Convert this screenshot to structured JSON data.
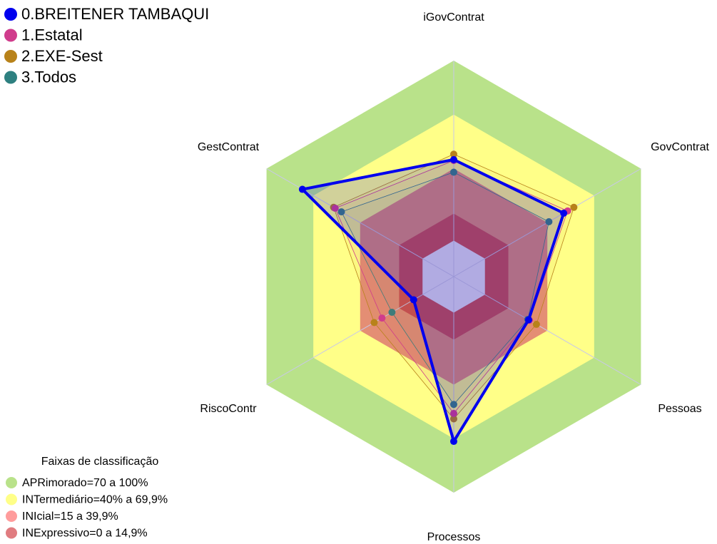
{
  "chart_data": {
    "type": "radar",
    "categories": [
      "iGovContrat",
      "GovContrat",
      "Pessoas",
      "Processos",
      "RiscoContr",
      "GestContrat"
    ],
    "rlim": [
      -20,
      100
    ],
    "series": [
      {
        "name": "0.BREITENER TAMBAQUI",
        "color": "#0000ee",
        "values": [
          45,
          50.5,
          28,
          71.5,
          5.7,
          77
        ]
      },
      {
        "name": "1.Estatal",
        "color": "#d03c8c",
        "values": [
          44.5,
          53,
          28.5,
          56,
          26,
          56
        ]
      },
      {
        "name": "2.EXE-Sest",
        "color": "#b8821a",
        "values": [
          48,
          57,
          33,
          59,
          31,
          57
        ]
      },
      {
        "name": "3.Todos",
        "color": "#2e8080",
        "values": [
          38,
          41,
          27.5,
          51,
          19.6,
          52
        ]
      }
    ],
    "bands_title": "Faixas de classificação",
    "bands": [
      {
        "name": "APRimorado=70 a 100%",
        "range": [
          70,
          100
        ],
        "color": "#b9e28a",
        "legend_color": "#b9e28a"
      },
      {
        "name": "INTermediário=40% a 69,9%",
        "range": [
          40,
          70
        ],
        "color": "#ffff88",
        "legend_color": "#ffff88"
      },
      {
        "name": "INIcial=15 a 39,9%",
        "range": [
          15,
          40
        ],
        "color": "#e48e74",
        "legend_color": "#ff9c9c"
      },
      {
        "name": "INExpressivo=0 a 14,9%",
        "range": [
          0,
          15
        ],
        "color": "#cc4a4c",
        "legend_color": "#e07c80"
      }
    ],
    "center_color": "#e6e6fa"
  }
}
